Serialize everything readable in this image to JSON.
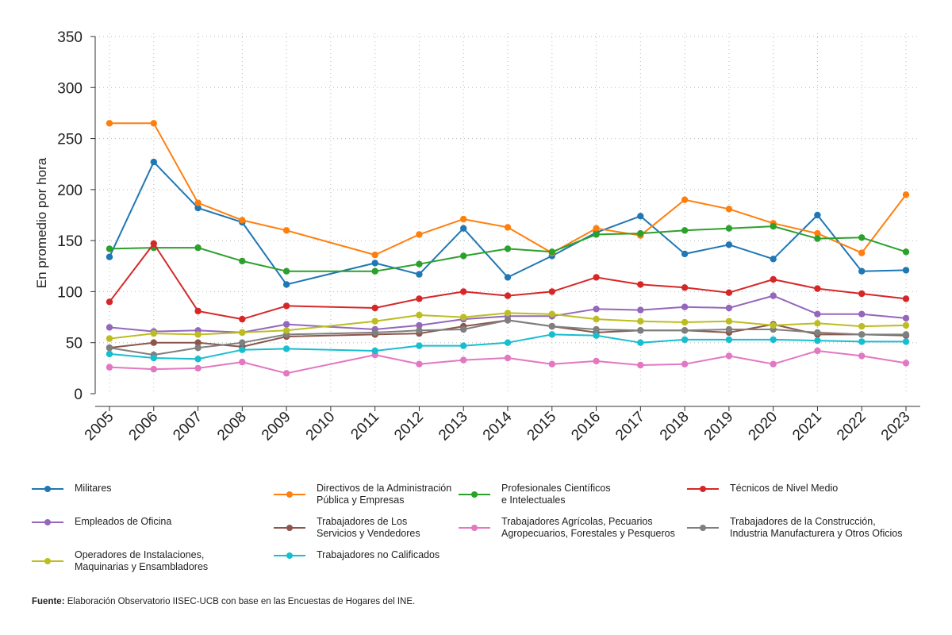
{
  "chart_data": {
    "type": "line",
    "title": "",
    "xlabel": "",
    "ylabel": "En promedio por hora",
    "ylim": [
      0,
      350
    ],
    "yticks": [
      0,
      50,
      100,
      150,
      200,
      250,
      300,
      350
    ],
    "x": [
      2005,
      2006,
      2007,
      2008,
      2009,
      2010,
      2011,
      2012,
      2013,
      2014,
      2015,
      2016,
      2017,
      2018,
      2019,
      2020,
      2021,
      2022,
      2023
    ],
    "x_tick_labels": [
      "2005",
      "2006",
      "2007",
      "2008",
      "2009",
      "2010",
      "2011",
      "2012",
      "2013",
      "2014",
      "2015",
      "2016",
      "2017",
      "2018",
      "2019",
      "2020",
      "2021",
      "2022",
      "2023"
    ],
    "grid": true,
    "legend_position": "bottom",
    "series": [
      {
        "name": "Militares",
        "color": "#1f77b4",
        "values": [
          134,
          227,
          182,
          168,
          107,
          null,
          128,
          117,
          162,
          114,
          135,
          158,
          174,
          137,
          146,
          132,
          175,
          120,
          121
        ]
      },
      {
        "name": "Directivos de la Administración\nPública y Empresas",
        "color": "#ff7f0e",
        "values": [
          265,
          265,
          187,
          170,
          160,
          null,
          136,
          156,
          171,
          163,
          138,
          162,
          155,
          190,
          181,
          167,
          157,
          138,
          195
        ]
      },
      {
        "name": "Profesionales Científicos\ne Intelectuales",
        "color": "#2ca02c",
        "values": [
          142,
          143,
          143,
          130,
          120,
          null,
          120,
          127,
          135,
          142,
          139,
          156,
          157,
          160,
          162,
          164,
          152,
          153,
          139
        ]
      },
      {
        "name": "Técnicos de Nivel Medio",
        "color": "#d62728",
        "values": [
          90,
          147,
          81,
          73,
          86,
          null,
          84,
          93,
          100,
          96,
          100,
          114,
          107,
          104,
          99,
          112,
          103,
          98,
          93
        ]
      },
      {
        "name": "Empleados de Oficina",
        "color": "#9467bd",
        "values": [
          65,
          61,
          62,
          60,
          68,
          null,
          63,
          67,
          73,
          76,
          76,
          83,
          82,
          85,
          84,
          96,
          78,
          78,
          74
        ]
      },
      {
        "name": "Trabajadores de Los\nServicios y Vendedores",
        "color": "#8c564b",
        "values": [
          45,
          50,
          50,
          46,
          56,
          null,
          58,
          59,
          66,
          72,
          66,
          60,
          62,
          62,
          60,
          68,
          58,
          58,
          57
        ]
      },
      {
        "name": "Trabajadores Agrícolas, Pecuarios\nAgropecuarios, Forestales y Pesqueros",
        "color": "#e377c2",
        "values": [
          26,
          24,
          25,
          31,
          20,
          null,
          38,
          29,
          33,
          35,
          29,
          32,
          28,
          29,
          37,
          29,
          42,
          37,
          30
        ]
      },
      {
        "name": "Trabajadores de la Construcción,\nIndustria Manufacturera y Otros Oficios",
        "color": "#7f7f7f",
        "values": [
          45,
          38,
          45,
          50,
          58,
          null,
          60,
          62,
          63,
          72,
          66,
          63,
          62,
          62,
          63,
          63,
          60,
          58,
          58
        ]
      },
      {
        "name": "Operadores de Instalaciones,\nMaquinarias y Ensambladores",
        "color": "#bcbd22",
        "values": [
          54,
          59,
          58,
          60,
          62,
          null,
          71,
          77,
          75,
          79,
          78,
          73,
          71,
          70,
          71,
          67,
          69,
          66,
          67
        ]
      },
      {
        "name": "Trabajadores no Calificados",
        "color": "#17becf",
        "values": [
          39,
          35,
          34,
          43,
          44,
          null,
          42,
          47,
          47,
          50,
          58,
          57,
          50,
          53,
          53,
          53,
          52,
          51,
          51
        ]
      }
    ]
  },
  "source": {
    "label": "Fuente:",
    "text": " Elaboración Observatorio IISEC-UCB con base en las Encuestas de Hogares del INE."
  }
}
